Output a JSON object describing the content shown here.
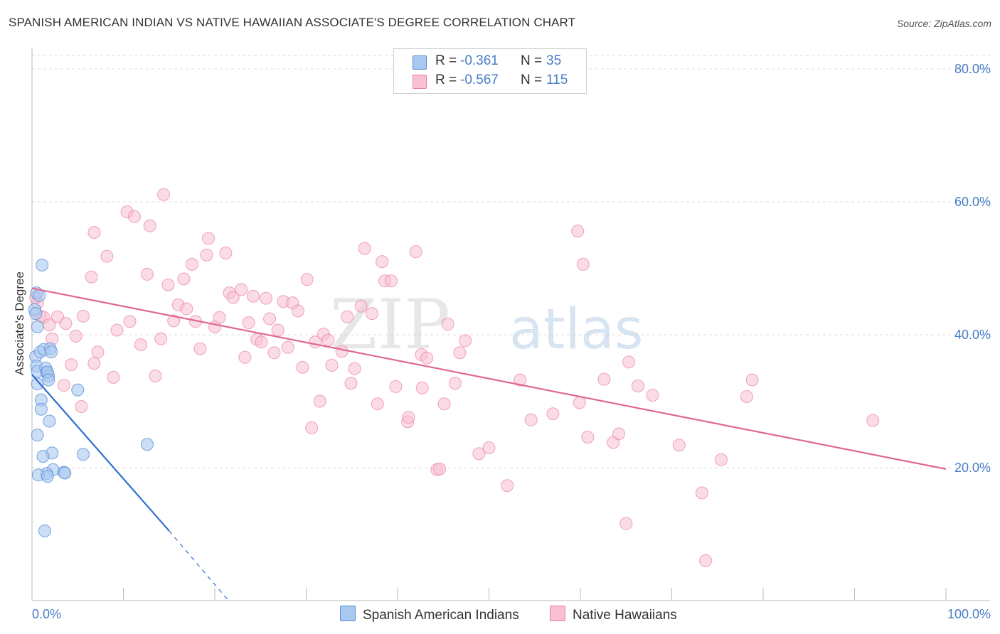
{
  "title": "SPANISH AMERICAN INDIAN VS NATIVE HAWAIIAN ASSOCIATE'S DEGREE CORRELATION CHART",
  "source": "Source: ZipAtlas.com",
  "watermark": {
    "zip": "ZIP",
    "atlas": "atlas"
  },
  "legend": {
    "rows": [
      {
        "r_label": "R =",
        "r_value": "-0.361",
        "n_label": "N =",
        "n_value": "35",
        "color": "#a8c8f0",
        "border": "#5b8fd8"
      },
      {
        "r_label": "R =",
        "r_value": "-0.567",
        "n_label": "N =",
        "n_value": "115",
        "color": "#f8c0d0",
        "border": "#e87fa0"
      }
    ]
  },
  "bottom_legend": [
    {
      "label": "Spanish American Indians",
      "color": "#a8c8f0",
      "border": "#5b8fd8"
    },
    {
      "label": "Native Hawaiians",
      "color": "#f8c0d0",
      "border": "#e87fa0"
    }
  ],
  "chart_data": {
    "type": "scatter",
    "title": "SPANISH AMERICAN INDIAN VS NATIVE HAWAIIAN ASSOCIATE'S DEGREE CORRELATION CHART",
    "xlabel": "",
    "ylabel": "Associate's Degree",
    "xlim": [
      0,
      100
    ],
    "ylim": [
      0,
      80
    ],
    "x_tick_labels": [
      "0.0%",
      "100.0%"
    ],
    "y_ticks": [
      20,
      40,
      60,
      80
    ],
    "y_tick_labels": [
      "20.0%",
      "40.0%",
      "60.0%",
      "80.0%"
    ],
    "grid": true,
    "colors": {
      "blue": "#5b8fd8",
      "blue_fill": "#a8c8f0",
      "blue_line": "#2f6fd1",
      "pink": "#e87fa0",
      "pink_fill": "#f8c0d0",
      "pink_line": "#e06890"
    },
    "series": [
      {
        "name": "Spanish American Indians",
        "points": [
          [
            0.3,
            43.8
          ],
          [
            0.5,
            46.3
          ],
          [
            0.4,
            43.2
          ],
          [
            0.6,
            41.2
          ],
          [
            1.1,
            50.5
          ],
          [
            0.8,
            45.9
          ],
          [
            0.4,
            36.7
          ],
          [
            0.5,
            35.3
          ],
          [
            0.6,
            34.5
          ],
          [
            0.9,
            37.4
          ],
          [
            1.3,
            37.8
          ],
          [
            2.0,
            37.9
          ],
          [
            2.1,
            37.4
          ],
          [
            1.5,
            35.0
          ],
          [
            1.6,
            34.3
          ],
          [
            1.8,
            33.8
          ],
          [
            1.7,
            34.4
          ],
          [
            1.8,
            33.2
          ],
          [
            0.6,
            32.6
          ],
          [
            1.0,
            30.2
          ],
          [
            1.0,
            28.8
          ],
          [
            1.9,
            27.0
          ],
          [
            0.6,
            24.9
          ],
          [
            5.0,
            31.7
          ],
          [
            12.6,
            23.5
          ],
          [
            2.2,
            22.2
          ],
          [
            1.2,
            21.7
          ],
          [
            5.6,
            22.0
          ],
          [
            2.3,
            19.7
          ],
          [
            1.6,
            19.1
          ],
          [
            0.7,
            18.9
          ],
          [
            1.7,
            18.7
          ],
          [
            3.5,
            19.3
          ],
          [
            3.6,
            19.2
          ],
          [
            1.4,
            10.5
          ]
        ],
        "trend": {
          "x0": 0,
          "y0": 34.0,
          "x1": 15,
          "y1": 10.5,
          "dash_to_x": 21.5,
          "dash_to_y": 0
        }
      },
      {
        "name": "Native Hawaiians",
        "points": [
          [
            0.6,
            44.8
          ],
          [
            0.9,
            42.8
          ],
          [
            1.3,
            42.6
          ],
          [
            1.9,
            41.5
          ],
          [
            2.2,
            39.4
          ],
          [
            2.8,
            42.7
          ],
          [
            3.7,
            41.7
          ],
          [
            4.8,
            39.8
          ],
          [
            5.6,
            42.8
          ],
          [
            3.5,
            32.4
          ],
          [
            4.3,
            35.5
          ],
          [
            5.4,
            29.2
          ],
          [
            6.8,
            35.7
          ],
          [
            7.2,
            37.4
          ],
          [
            6.5,
            48.7
          ],
          [
            6.8,
            55.4
          ],
          [
            8.2,
            51.8
          ],
          [
            8.9,
            33.6
          ],
          [
            9.3,
            40.7
          ],
          [
            10.4,
            58.5
          ],
          [
            10.7,
            42.0
          ],
          [
            11.2,
            57.8
          ],
          [
            11.9,
            38.5
          ],
          [
            12.6,
            49.1
          ],
          [
            12.9,
            56.4
          ],
          [
            13.5,
            33.8
          ],
          [
            14.1,
            39.4
          ],
          [
            14.4,
            61.1
          ],
          [
            14.9,
            47.5
          ],
          [
            15.5,
            42.1
          ],
          [
            16.0,
            44.5
          ],
          [
            16.6,
            48.4
          ],
          [
            16.9,
            43.9
          ],
          [
            17.5,
            50.6
          ],
          [
            17.9,
            42.0
          ],
          [
            18.4,
            37.9
          ],
          [
            19.1,
            52.0
          ],
          [
            19.3,
            54.5
          ],
          [
            20.0,
            41.2
          ],
          [
            20.5,
            42.6
          ],
          [
            21.2,
            52.3
          ],
          [
            21.6,
            46.3
          ],
          [
            22.0,
            45.6
          ],
          [
            22.9,
            46.8
          ],
          [
            23.3,
            36.6
          ],
          [
            23.7,
            41.8
          ],
          [
            24.2,
            45.8
          ],
          [
            24.6,
            39.3
          ],
          [
            25.1,
            38.9
          ],
          [
            25.6,
            45.5
          ],
          [
            26.0,
            42.4
          ],
          [
            26.5,
            37.3
          ],
          [
            26.9,
            40.7
          ],
          [
            27.5,
            45.0
          ],
          [
            28.0,
            38.1
          ],
          [
            28.5,
            44.8
          ],
          [
            29.1,
            43.6
          ],
          [
            29.6,
            35.1
          ],
          [
            30.1,
            48.3
          ],
          [
            30.6,
            26.0
          ],
          [
            31.0,
            38.9
          ],
          [
            31.5,
            30.0
          ],
          [
            31.9,
            40.1
          ],
          [
            32.4,
            39.2
          ],
          [
            32.8,
            35.4
          ],
          [
            33.9,
            37.5
          ],
          [
            34.5,
            42.7
          ],
          [
            34.9,
            32.7
          ],
          [
            35.3,
            34.9
          ],
          [
            36.0,
            44.3
          ],
          [
            36.4,
            53.0
          ],
          [
            37.2,
            43.2
          ],
          [
            37.8,
            29.6
          ],
          [
            38.3,
            51.0
          ],
          [
            38.6,
            48.1
          ],
          [
            39.3,
            48.1
          ],
          [
            39.8,
            32.2
          ],
          [
            41.1,
            26.9
          ],
          [
            41.2,
            27.6
          ],
          [
            42.0,
            52.5
          ],
          [
            42.6,
            37.0
          ],
          [
            42.7,
            32.0
          ],
          [
            43.2,
            36.5
          ],
          [
            44.3,
            19.7
          ],
          [
            44.6,
            19.8
          ],
          [
            45.1,
            29.6
          ],
          [
            45.5,
            41.6
          ],
          [
            46.3,
            32.7
          ],
          [
            46.8,
            37.3
          ],
          [
            47.4,
            39.1
          ],
          [
            48.9,
            22.1
          ],
          [
            50.0,
            23.0
          ],
          [
            52.0,
            17.3
          ],
          [
            53.4,
            33.2
          ],
          [
            54.6,
            27.2
          ],
          [
            57.0,
            28.1
          ],
          [
            59.7,
            55.6
          ],
          [
            59.9,
            29.8
          ],
          [
            60.3,
            50.6
          ],
          [
            60.8,
            24.6
          ],
          [
            62.6,
            33.3
          ],
          [
            63.6,
            23.8
          ],
          [
            64.2,
            25.1
          ],
          [
            65.0,
            11.6
          ],
          [
            65.3,
            35.9
          ],
          [
            66.3,
            32.3
          ],
          [
            67.9,
            30.9
          ],
          [
            70.8,
            23.4
          ],
          [
            73.3,
            16.2
          ],
          [
            73.7,
            6.0
          ],
          [
            75.4,
            21.2
          ],
          [
            78.2,
            30.7
          ],
          [
            78.8,
            33.2
          ],
          [
            92.0,
            27.1
          ],
          [
            0.4,
            45.6
          ]
        ],
        "trend": {
          "x0": 0,
          "y0": 47.0,
          "x1": 100,
          "y1": 19.8
        }
      }
    ]
  }
}
